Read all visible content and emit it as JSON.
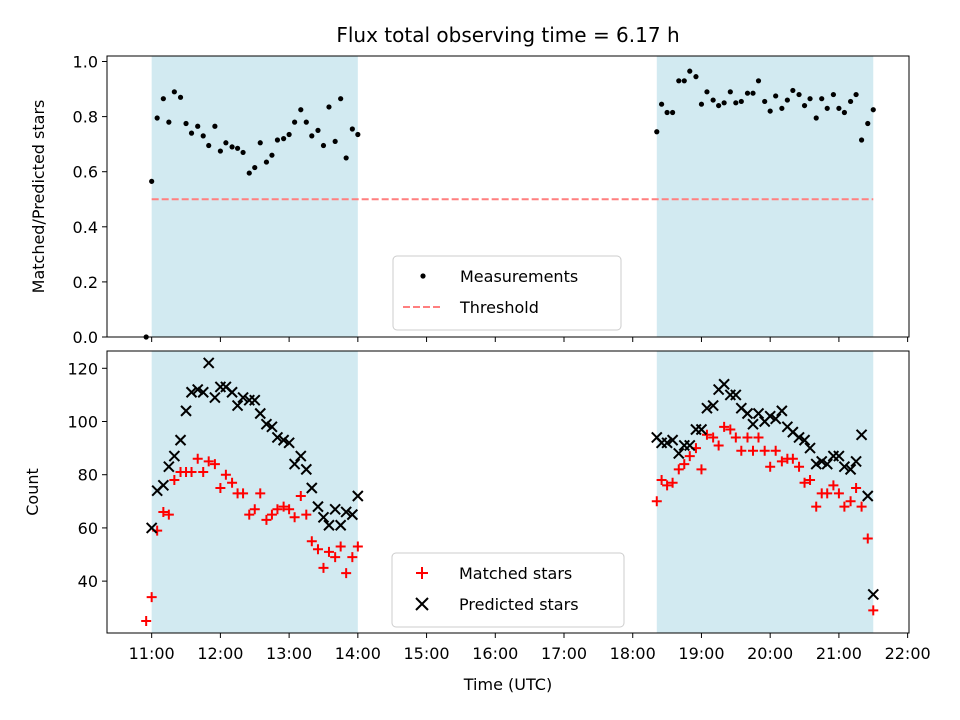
{
  "title": "Flux total observing time = 6.17 h",
  "xlabel": "Time (UTC)",
  "x_ticks": [
    "11:00",
    "12:00",
    "13:00",
    "14:00",
    "15:00",
    "16:00",
    "17:00",
    "18:00",
    "19:00",
    "20:00",
    "21:00",
    "22:00"
  ],
  "colors": {
    "background": "#ffffff",
    "shade": "#add8e6",
    "threshold": "#ff7f7f",
    "measurements": "#000000",
    "matched": "#ff0000",
    "predicted": "#000000"
  },
  "chart_data": [
    {
      "type": "scatter",
      "title": "Flux total observing time = 6.17 h",
      "ylabel": "Matched/Predicted stars",
      "xlabel": "",
      "x_unit": "hours UTC",
      "xlim": [
        10.35,
        22.02
      ],
      "ylim": [
        0,
        1.02
      ],
      "y_ticks": [
        "0.0",
        "0.2",
        "0.4",
        "0.6",
        "0.8",
        "1.0"
      ],
      "y_tick_values": [
        0,
        0.2,
        0.4,
        0.6,
        0.8,
        1.0
      ],
      "grid": false,
      "legend": {
        "position": "lower-center",
        "entries": [
          "Measurements",
          "Threshold"
        ]
      },
      "shaded_intervals": [
        [
          11.0,
          14.0
        ],
        [
          18.35,
          21.5
        ]
      ],
      "threshold": {
        "name": "Threshold",
        "y": 0.5,
        "x": [
          11.0,
          21.5
        ]
      },
      "series": [
        {
          "name": "Measurements",
          "points": [
            [
              10.92,
              0.0
            ],
            [
              11.0,
              0.565
            ],
            [
              11.08,
              0.795
            ],
            [
              11.17,
              0.865
            ],
            [
              11.25,
              0.78
            ],
            [
              11.33,
              0.89
            ],
            [
              11.42,
              0.87
            ],
            [
              11.5,
              0.775
            ],
            [
              11.58,
              0.74
            ],
            [
              11.67,
              0.765
            ],
            [
              11.75,
              0.73
            ],
            [
              11.83,
              0.695
            ],
            [
              11.92,
              0.765
            ],
            [
              12.0,
              0.675
            ],
            [
              12.08,
              0.705
            ],
            [
              12.17,
              0.69
            ],
            [
              12.25,
              0.685
            ],
            [
              12.33,
              0.67
            ],
            [
              12.42,
              0.595
            ],
            [
              12.5,
              0.615
            ],
            [
              12.58,
              0.705
            ],
            [
              12.67,
              0.635
            ],
            [
              12.75,
              0.66
            ],
            [
              12.83,
              0.715
            ],
            [
              12.92,
              0.72
            ],
            [
              13.0,
              0.735
            ],
            [
              13.08,
              0.78
            ],
            [
              13.17,
              0.825
            ],
            [
              13.25,
              0.78
            ],
            [
              13.33,
              0.73
            ],
            [
              13.42,
              0.75
            ],
            [
              13.5,
              0.695
            ],
            [
              13.58,
              0.835
            ],
            [
              13.67,
              0.71
            ],
            [
              13.75,
              0.865
            ],
            [
              13.83,
              0.65
            ],
            [
              13.92,
              0.755
            ],
            [
              14.0,
              0.735
            ],
            [
              18.35,
              0.745
            ],
            [
              18.42,
              0.845
            ],
            [
              18.5,
              0.815
            ],
            [
              18.58,
              0.815
            ],
            [
              18.67,
              0.93
            ],
            [
              18.75,
              0.93
            ],
            [
              18.83,
              0.965
            ],
            [
              18.92,
              0.945
            ],
            [
              19.0,
              0.845
            ],
            [
              19.08,
              0.89
            ],
            [
              19.17,
              0.86
            ],
            [
              19.25,
              0.84
            ],
            [
              19.33,
              0.85
            ],
            [
              19.42,
              0.89
            ],
            [
              19.5,
              0.85
            ],
            [
              19.58,
              0.855
            ],
            [
              19.67,
              0.885
            ],
            [
              19.75,
              0.885
            ],
            [
              19.83,
              0.93
            ],
            [
              19.92,
              0.855
            ],
            [
              20.0,
              0.82
            ],
            [
              20.08,
              0.875
            ],
            [
              20.17,
              0.83
            ],
            [
              20.25,
              0.86
            ],
            [
              20.33,
              0.895
            ],
            [
              20.42,
              0.88
            ],
            [
              20.5,
              0.84
            ],
            [
              20.58,
              0.865
            ],
            [
              20.67,
              0.795
            ],
            [
              20.75,
              0.865
            ],
            [
              20.83,
              0.83
            ],
            [
              20.92,
              0.88
            ],
            [
              21.0,
              0.83
            ],
            [
              21.08,
              0.815
            ],
            [
              21.17,
              0.855
            ],
            [
              21.25,
              0.88
            ],
            [
              21.33,
              0.715
            ],
            [
              21.42,
              0.775
            ],
            [
              21.5,
              0.825
            ]
          ]
        }
      ]
    },
    {
      "type": "scatter",
      "title": "",
      "ylabel": "Count",
      "xlabel": "Time (UTC)",
      "x_unit": "hours UTC",
      "xlim": [
        10.35,
        22.02
      ],
      "ylim": [
        20.5,
        126.5
      ],
      "y_ticks": [
        "40",
        "60",
        "80",
        "100",
        "120"
      ],
      "y_tick_values": [
        40,
        60,
        80,
        100,
        120
      ],
      "grid": false,
      "legend": {
        "position": "lower-center",
        "entries": [
          "Matched stars",
          "Predicted stars"
        ]
      },
      "shaded_intervals": [
        [
          11.0,
          14.0
        ],
        [
          18.35,
          21.5
        ]
      ],
      "series": [
        {
          "name": "Matched stars",
          "marker": "plus",
          "points": [
            [
              10.92,
              25
            ],
            [
              11.0,
              34
            ],
            [
              11.08,
              59
            ],
            [
              11.17,
              66
            ],
            [
              11.25,
              65
            ],
            [
              11.33,
              78
            ],
            [
              11.42,
              81
            ],
            [
              11.5,
              81
            ],
            [
              11.58,
              81
            ],
            [
              11.67,
              86
            ],
            [
              11.75,
              81
            ],
            [
              11.83,
              85
            ],
            [
              11.92,
              84
            ],
            [
              12.0,
              75
            ],
            [
              12.08,
              80
            ],
            [
              12.17,
              77
            ],
            [
              12.25,
              73
            ],
            [
              12.33,
              73
            ],
            [
              12.42,
              65
            ],
            [
              12.5,
              67
            ],
            [
              12.58,
              73
            ],
            [
              12.67,
              63
            ],
            [
              12.75,
              65
            ],
            [
              12.83,
              67
            ],
            [
              12.92,
              68
            ],
            [
              13.0,
              67
            ],
            [
              13.08,
              64
            ],
            [
              13.17,
              72
            ],
            [
              13.25,
              65
            ],
            [
              13.33,
              55
            ],
            [
              13.42,
              52
            ],
            [
              13.5,
              45
            ],
            [
              13.58,
              51
            ],
            [
              13.67,
              49
            ],
            [
              13.75,
              53
            ],
            [
              13.83,
              43
            ],
            [
              13.92,
              49
            ],
            [
              14.0,
              53
            ],
            [
              18.35,
              70
            ],
            [
              18.42,
              78
            ],
            [
              18.5,
              76
            ],
            [
              18.58,
              77
            ],
            [
              18.67,
              82
            ],
            [
              18.75,
              84
            ],
            [
              18.83,
              87
            ],
            [
              18.92,
              90
            ],
            [
              19.0,
              82
            ],
            [
              19.08,
              95
            ],
            [
              19.17,
              94
            ],
            [
              19.25,
              91
            ],
            [
              19.33,
              98
            ],
            [
              19.42,
              97
            ],
            [
              19.5,
              94
            ],
            [
              19.58,
              89
            ],
            [
              19.67,
              94
            ],
            [
              19.75,
              89
            ],
            [
              19.83,
              94
            ],
            [
              19.92,
              89
            ],
            [
              20.0,
              83
            ],
            [
              20.08,
              89
            ],
            [
              20.17,
              85
            ],
            [
              20.25,
              86
            ],
            [
              20.33,
              86
            ],
            [
              20.42,
              83
            ],
            [
              20.5,
              77
            ],
            [
              20.58,
              78
            ],
            [
              20.67,
              68
            ],
            [
              20.75,
              73
            ],
            [
              20.83,
              73
            ],
            [
              20.92,
              76
            ],
            [
              21.0,
              73
            ],
            [
              21.08,
              68
            ],
            [
              21.17,
              70
            ],
            [
              21.25,
              75
            ],
            [
              21.33,
              68
            ],
            [
              21.42,
              56
            ],
            [
              21.5,
              29
            ]
          ]
        },
        {
          "name": "Predicted stars",
          "marker": "x",
          "points": [
            [
              11.0,
              60
            ],
            [
              11.08,
              74
            ],
            [
              11.17,
              76
            ],
            [
              11.25,
              83
            ],
            [
              11.33,
              87
            ],
            [
              11.42,
              93
            ],
            [
              11.5,
              104
            ],
            [
              11.58,
              111
            ],
            [
              11.67,
              112
            ],
            [
              11.75,
              111
            ],
            [
              11.83,
              122
            ],
            [
              11.92,
              109
            ],
            [
              12.0,
              113
            ],
            [
              12.08,
              113
            ],
            [
              12.17,
              111
            ],
            [
              12.25,
              106
            ],
            [
              12.33,
              109
            ],
            [
              12.42,
              108
            ],
            [
              12.5,
              108
            ],
            [
              12.58,
              103
            ],
            [
              12.67,
              99
            ],
            [
              12.75,
              98
            ],
            [
              12.83,
              94
            ],
            [
              12.92,
              93
            ],
            [
              13.0,
              92
            ],
            [
              13.08,
              84
            ],
            [
              13.17,
              87
            ],
            [
              13.25,
              82
            ],
            [
              13.33,
              75
            ],
            [
              13.42,
              68
            ],
            [
              13.5,
              64
            ],
            [
              13.58,
              61
            ],
            [
              13.67,
              67
            ],
            [
              13.75,
              61
            ],
            [
              13.83,
              66
            ],
            [
              13.92,
              65
            ],
            [
              14.0,
              72
            ],
            [
              18.35,
              94
            ],
            [
              18.42,
              92
            ],
            [
              18.5,
              92
            ],
            [
              18.58,
              93
            ],
            [
              18.67,
              88
            ],
            [
              18.75,
              91
            ],
            [
              18.83,
              91
            ],
            [
              18.92,
              97
            ],
            [
              19.0,
              97
            ],
            [
              19.08,
              105
            ],
            [
              19.17,
              106
            ],
            [
              19.25,
              112
            ],
            [
              19.33,
              114
            ],
            [
              19.42,
              110
            ],
            [
              19.5,
              110
            ],
            [
              19.58,
              105
            ],
            [
              19.67,
              103
            ],
            [
              19.75,
              99
            ],
            [
              19.83,
              103
            ],
            [
              19.92,
              100
            ],
            [
              20.0,
              102
            ],
            [
              20.08,
              101
            ],
            [
              20.17,
              104
            ],
            [
              20.25,
              98
            ],
            [
              20.33,
              96
            ],
            [
              20.42,
              94
            ],
            [
              20.5,
              93
            ],
            [
              20.58,
              90
            ],
            [
              20.67,
              84
            ],
            [
              20.75,
              85
            ],
            [
              20.83,
              84
            ],
            [
              20.92,
              87
            ],
            [
              21.0,
              87
            ],
            [
              21.08,
              83
            ],
            [
              21.17,
              82
            ],
            [
              21.25,
              85
            ],
            [
              21.33,
              95
            ],
            [
              21.42,
              72
            ],
            [
              21.5,
              35
            ]
          ]
        }
      ]
    }
  ]
}
